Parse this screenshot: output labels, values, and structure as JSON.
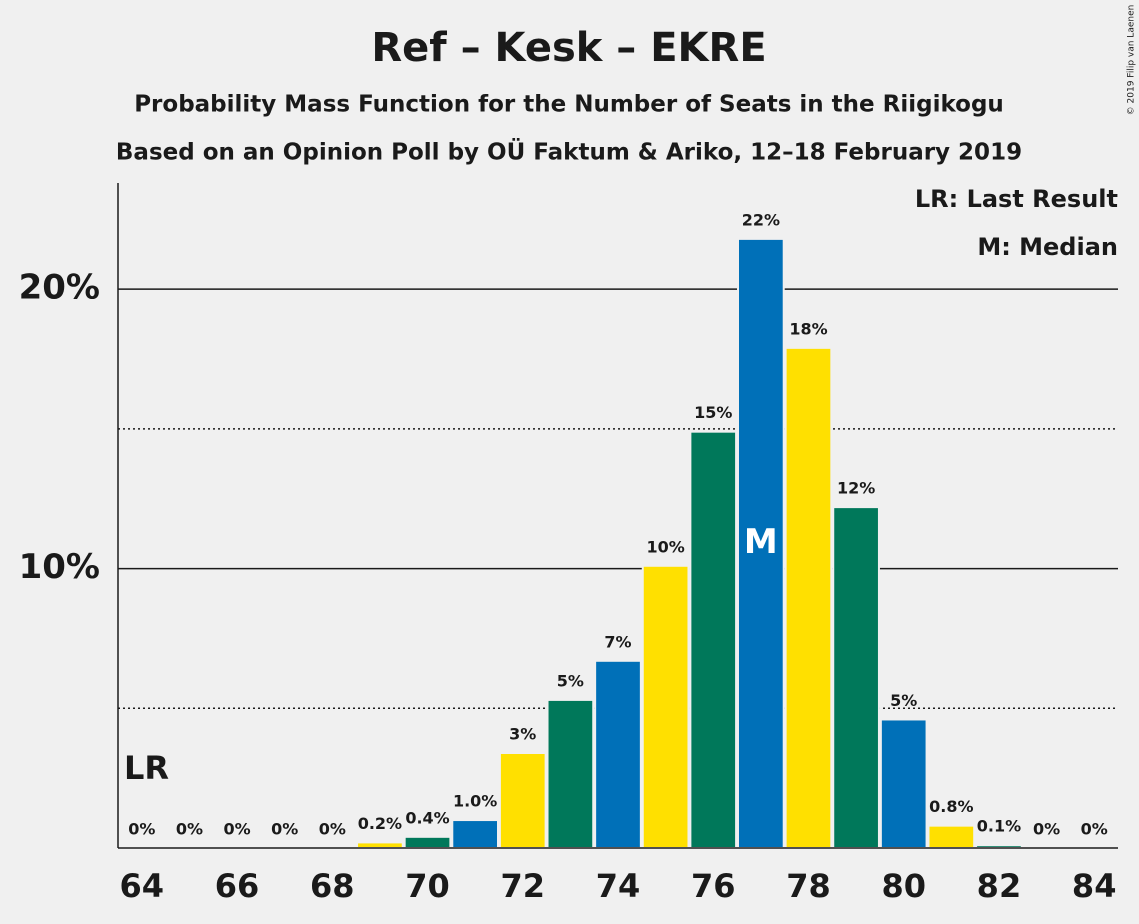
{
  "chart_data": {
    "type": "bar",
    "title": "Ref – Kesk – EKRE",
    "subtitles": [
      "Probability Mass Function for the Number of Seats in the Riigikogu",
      "Based on an Opinion Poll by OÜ Faktum & Ariko, 12–18 February 2019"
    ],
    "credit": "© 2019 Filip van Laenen",
    "x": [
      64,
      65,
      66,
      67,
      68,
      69,
      70,
      71,
      72,
      73,
      74,
      75,
      76,
      77,
      78,
      79,
      80,
      81,
      82,
      83,
      84
    ],
    "values": [
      0,
      0,
      0,
      0,
      0,
      0.2,
      0.4,
      1.0,
      3.4,
      5.3,
      6.7,
      10.1,
      14.9,
      21.8,
      17.9,
      12.2,
      4.6,
      0.8,
      0.1,
      0,
      0
    ],
    "value_labels": [
      "0%",
      "0%",
      "0%",
      "0%",
      "0%",
      "0.2%",
      "0.4%",
      "1.0%",
      "3%",
      "5%",
      "7%",
      "10%",
      "15%",
      "22%",
      "18%",
      "12%",
      "5%",
      "0.8%",
      "0.1%",
      "0%",
      "0%"
    ],
    "colors": [
      "#00785a",
      "#0070b8",
      "#ffe000",
      "#00785a",
      "#0070b8",
      "#ffe000",
      "#00785a",
      "#0070b8",
      "#ffe000",
      "#00785a",
      "#0070b8",
      "#ffe000",
      "#00785a",
      "#0070b8",
      "#ffe000",
      "#00785a",
      "#0070b8",
      "#ffe000",
      "#00785a",
      "#0070b8",
      "#ffe000"
    ],
    "xlim": [
      63.5,
      84.5
    ],
    "xticks": [
      64,
      66,
      68,
      70,
      72,
      74,
      76,
      78,
      80,
      82,
      84
    ],
    "ylim": [
      0,
      23.8
    ],
    "yticks": [
      {
        "value": 10,
        "label": "10%"
      },
      {
        "value": 20,
        "label": "20%"
      }
    ],
    "minor_yticks": [
      5,
      15
    ],
    "grid": true,
    "annotations": [
      {
        "text": "LR",
        "x": 64
      },
      {
        "text": "M",
        "x": 77
      }
    ],
    "legend": [
      "LR: Last Result",
      "M: Median"
    ]
  }
}
